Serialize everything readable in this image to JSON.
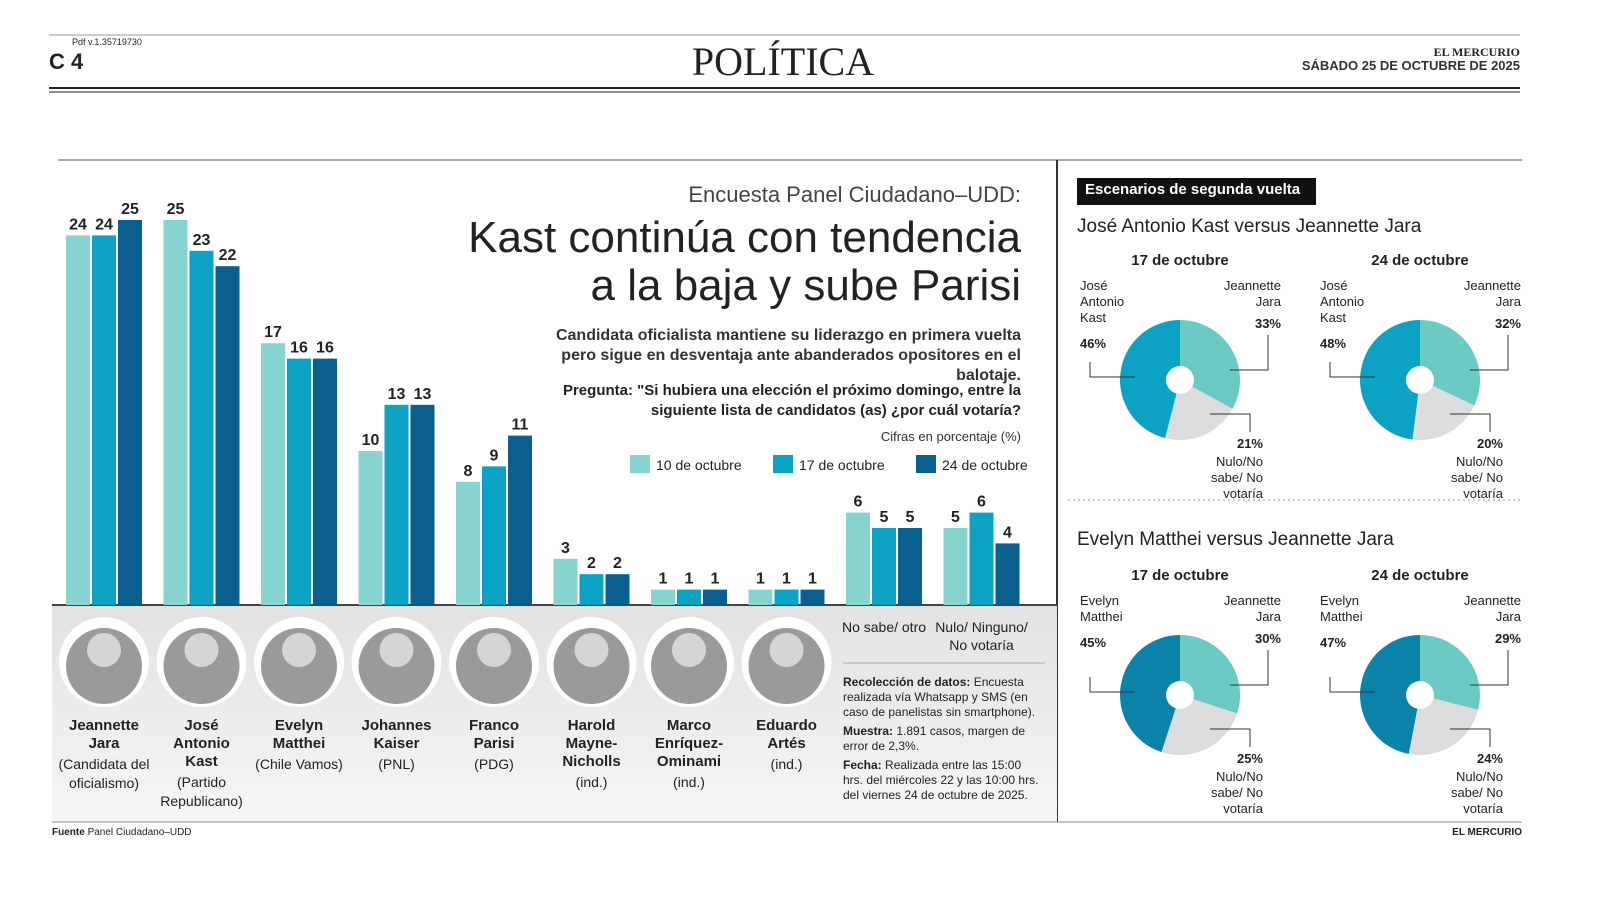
{
  "header": {
    "pdf": "Pdf v.1.35719730",
    "page": "C 4",
    "section": "POLÍTICA",
    "paper": "EL MERCURIO",
    "date": "SÁBADO 25 DE OCTUBRE DE 2025"
  },
  "kicker": "Encuesta Panel Ciudadano–UDD:",
  "subtitle": "Candidata oficialista mantiene su liderazgo en primera vuelta pero sigue en desventaja ante abanderados opositores en el balotaje.",
  "question": "Pregunta: \"Si hubiera una elección el próximo domingo, entre la siguiente lista de candidatos (as) ¿por cuál votaría?",
  "note": "Cifras en porcentaje (%)",
  "methodology": [
    {
      "label": "Recolección de datos:",
      "text": "Encuesta realizada vía Whatsapp y SMS (en caso de panelistas sin smartphone)."
    },
    {
      "label": "Muestra:",
      "text": "1.891 casos, margen de error de 2,3%."
    },
    {
      "label": "Fecha:",
      "text": "Realizada entre las 15:00 hrs. del miércoles 22 y las 10:00 hrs. del viernes 24 de octubre de 2025."
    }
  ],
  "footer": {
    "label": "Fuente",
    "source": "Panel Ciudadano–UDD",
    "paper": "EL MERCURIO"
  },
  "sidebar": {
    "badge": "Escenarios de segunda vuelta",
    "scenarios": [
      "José Antonio Kast versus Jeannette Jara",
      "Evelyn Matthei versus Jeannette Jara"
    ]
  },
  "chart_data": [
    {
      "type": "bar",
      "title": "Kast continúa con tendencia a la baja y sube Parisi",
      "categories": [
        "Jeannette Jara",
        "José Antonio Kast",
        "Evelyn Matthei",
        "Johannes Kaiser",
        "Franco Parisi",
        "Harold Mayne-Nicholls",
        "Marco Enríquez-Ominami",
        "Eduardo Artés",
        "No sabe/ otro",
        "Nulo/ Ninguno/ No votaría"
      ],
      "category_notes": [
        "(Candidata del oficialismo)",
        "(Partido Republicano)",
        "(Chile Vamos)",
        "(PNL)",
        "(PDG)",
        "(ind.)",
        "(ind.)",
        "(ind.)",
        null,
        null
      ],
      "series": [
        {
          "name": "10 de octubre",
          "color": "#86d3d0",
          "values": [
            24,
            25,
            17,
            10,
            8,
            3,
            1,
            1,
            6,
            5
          ]
        },
        {
          "name": "17 de octubre",
          "color": "#0ba2c4",
          "values": [
            24,
            23,
            16,
            13,
            9,
            2,
            1,
            1,
            5,
            6
          ]
        },
        {
          "name": "24 de octubre",
          "color": "#0a5f8f",
          "values": [
            25,
            22,
            16,
            13,
            11,
            2,
            1,
            1,
            5,
            4
          ]
        }
      ]
    },
    {
      "type": "pie",
      "title": "17 de octubre",
      "labels": [
        "Jeannette Jara",
        "Nulo/No sabe/ No votaría",
        "José Antonio Kast"
      ],
      "values": [
        33,
        21,
        46
      ],
      "value_labels": [
        "33%",
        "21%",
        "46%"
      ],
      "colors": [
        "#6ccac4",
        "#dcdcdc",
        "#0ba2c4"
      ]
    },
    {
      "type": "pie",
      "title": "24 de octubre",
      "labels": [
        "Jeannette Jara",
        "Nulo/No sabe/ No votaría",
        "José Antonio Kast"
      ],
      "values": [
        32,
        20,
        48
      ],
      "value_labels": [
        "32%",
        "20%",
        "48%"
      ],
      "colors": [
        "#6ccac4",
        "#dcdcdc",
        "#0ba2c4"
      ]
    },
    {
      "type": "pie",
      "title": "17 de octubre",
      "labels": [
        "Jeannette Jara",
        "Nulo/No sabe/ No votaría",
        "Evelyn Matthei"
      ],
      "values": [
        30,
        25,
        45
      ],
      "value_labels": [
        "30%",
        "25%",
        "45%"
      ],
      "colors": [
        "#6ccac4",
        "#dcdcdc",
        "#0b82a8"
      ]
    },
    {
      "type": "pie",
      "title": "24 de octubre",
      "labels": [
        "Jeannette Jara",
        "Nulo/No sabe/ No votaría",
        "Evelyn Matthei"
      ],
      "values": [
        29,
        24,
        47
      ],
      "value_labels": [
        "29%",
        "24%",
        "47%"
      ],
      "colors": [
        "#6ccac4",
        "#dcdcdc",
        "#0b82a8"
      ]
    }
  ]
}
